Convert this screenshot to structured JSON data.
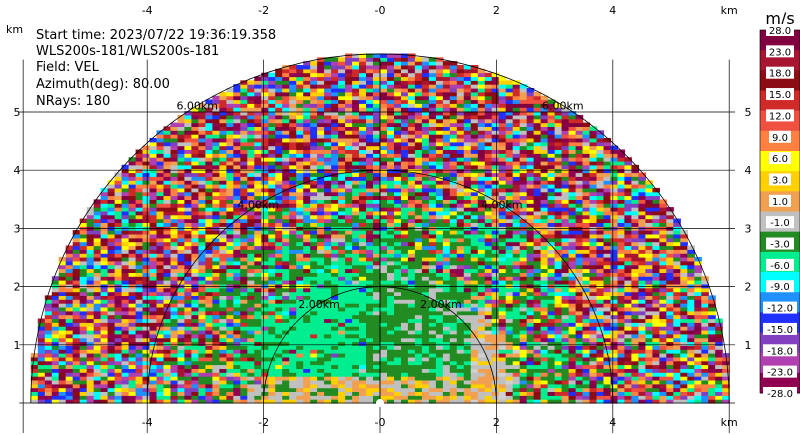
{
  "chart_data": {
    "type": "heatmap",
    "subtype": "radar-rhi-scan",
    "info": {
      "start_time": "Start time: 2023/07/22 19:36:19.358",
      "instrument": "WLS200s-181/WLS200s-181",
      "field": "Field: VEL",
      "azimuth": "Azimuth(deg): 80.00",
      "nrays": "NRays: 180"
    },
    "x_unit": "km",
    "y_unit": "km",
    "xlim": [
      -6.2,
      6.1
    ],
    "ylim": [
      0,
      5.9
    ],
    "x_ticks": [
      -4,
      -2,
      0,
      2,
      4,
      6
    ],
    "x_tick_labels": [
      "-4",
      "-2",
      "-0",
      "2",
      "4",
      "km"
    ],
    "y_ticks": [
      1,
      2,
      3,
      4,
      5
    ],
    "y_tick_labels": [
      "1",
      "2",
      "3",
      "4",
      "5"
    ],
    "y_unit_label": "km",
    "max_range_km": 6.0,
    "range_rings_km": [
      2,
      4,
      6
    ],
    "range_ring_labels": [
      "2.00km",
      "4.00km",
      "6.00km"
    ],
    "grid": true,
    "colorbar": {
      "title": "m/s",
      "labels": [
        "28.0",
        "23.0",
        "18.0",
        "15.0",
        "12.0",
        "9.0",
        "6.0",
        "3.0",
        "1.0",
        "-1.0",
        "-3.0",
        "-6.0",
        "-9.0",
        "-12.0",
        "-15.0",
        "-18.0",
        "-23.0",
        "-28.0"
      ],
      "colors": [
        "#800040",
        "#a81530",
        "#8c0c14",
        "#cf2a28",
        "#f05040",
        "#ff8040",
        "#ffff00",
        "#ffd000",
        "#f0a050",
        "#c0c0c0",
        "#228b22",
        "#00ee90",
        "#00ffff",
        "#1e90ff",
        "#2030ff",
        "#8040c0",
        "#b040b0",
        "#900050"
      ]
    }
  }
}
